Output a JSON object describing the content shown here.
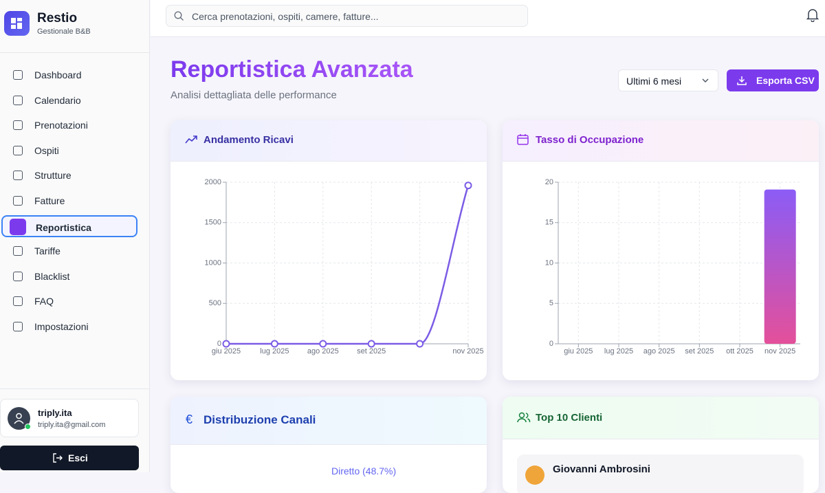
{
  "sidebar": {
    "brand": "Restio",
    "tagline": "Gestionale B&B",
    "nav": [
      {
        "label": "Dashboard"
      },
      {
        "label": "Calendario"
      },
      {
        "label": "Prenotazioni"
      },
      {
        "label": "Ospiti"
      },
      {
        "label": "Strutture"
      },
      {
        "label": "Fatture"
      },
      {
        "label": "Reportistica",
        "active": true
      },
      {
        "label": "Tariffe"
      },
      {
        "label": "Blacklist"
      },
      {
        "label": "FAQ"
      },
      {
        "label": "Impostazioni"
      }
    ],
    "user": {
      "name": "triply.ita",
      "email": "triply.ita@gmail.com"
    },
    "logout": "Esci"
  },
  "topbar": {
    "search_placeholder": "Cerca prenotazioni, ospiti, camere, fatture..."
  },
  "header": {
    "title": "Reportistica Avanzata",
    "subtitle": "Analisi dettagliata delle performance",
    "period": "Ultimi 6 mesi",
    "export": "Esporta CSV"
  },
  "chart_data": [
    {
      "type": "line",
      "title": "Andamento Ricavi",
      "categories": [
        "giu 2025",
        "lug 2025",
        "ago 2025",
        "set 2025",
        null,
        "nov 2025"
      ],
      "values": [
        0,
        0,
        0,
        0,
        0,
        1960
      ],
      "color": "#7b5ce6",
      "ylim": [
        0,
        2000
      ],
      "yticks": [
        0,
        500,
        1000,
        1500,
        2000
      ],
      "grid": true
    },
    {
      "type": "bar",
      "title": "Tasso di Occupazione",
      "categories": [
        "giu 2025",
        "lug 2025",
        "ago 2025",
        "set 2025",
        "ott 2025",
        "nov 2025"
      ],
      "values": [
        0,
        0,
        0,
        0,
        0,
        19.1
      ],
      "gradient": [
        "#8b5cf6",
        "#e4509a"
      ],
      "ylim": [
        0,
        20
      ],
      "yticks": [
        0,
        5,
        10,
        15,
        20
      ],
      "grid": true
    }
  ],
  "cards": {
    "channels": {
      "title": "Distribuzione Canali",
      "label": "Diretto (48.7%)"
    },
    "top_clients": {
      "title": "Top 10 Clienti",
      "clients": [
        {
          "name": "Giovanni Ambrosini"
        }
      ]
    }
  }
}
